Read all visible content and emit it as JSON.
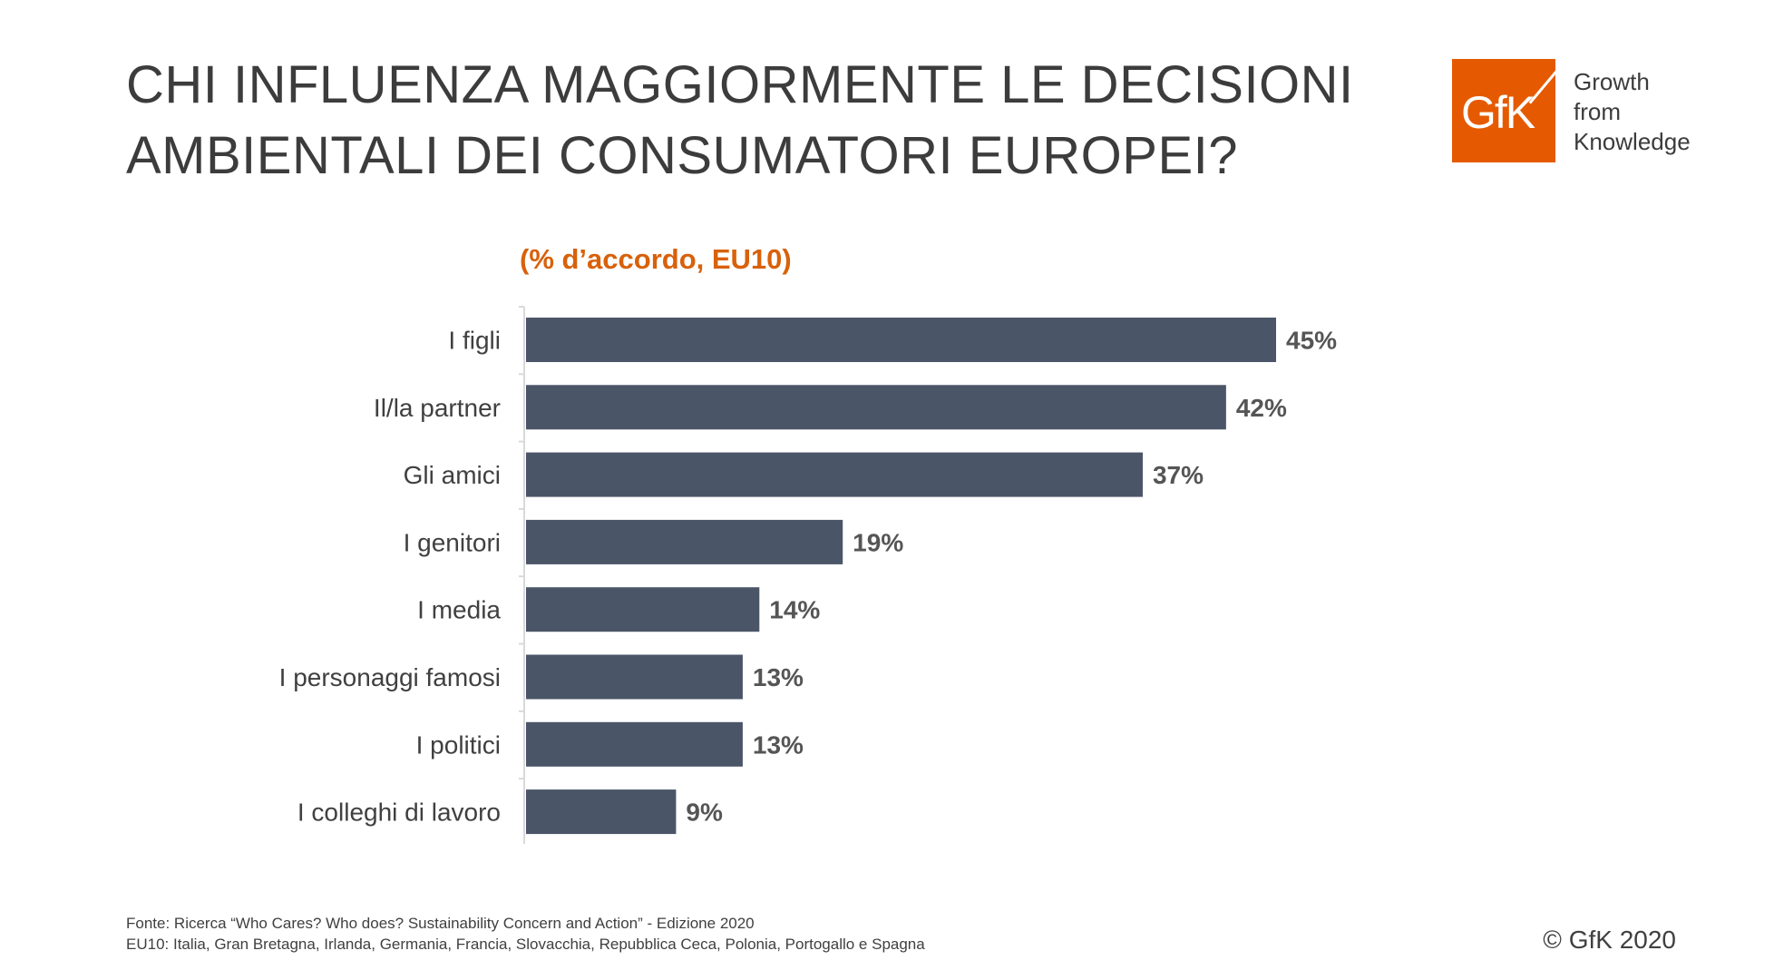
{
  "header": {
    "title_line1": "CHI INFLUENZA MAGGIORMENTE LE DECISIONI",
    "title_line2": "AMBIENTALI DEI CONSUMATORI EUROPEI?"
  },
  "logo": {
    "text": "GfK",
    "tagline": [
      "Growth",
      "from",
      "Knowledge"
    ],
    "color": "#e55a00"
  },
  "chart_data": {
    "type": "bar",
    "orientation": "horizontal",
    "subtitle": "(% d’accordo, EU10)",
    "categories": [
      "I figli",
      "Il/la partner",
      "Gli amici",
      "I genitori",
      "I media",
      "I personaggi famosi",
      "I politici",
      "I colleghi di lavoro"
    ],
    "values": [
      45,
      42,
      37,
      19,
      14,
      13,
      13,
      9
    ],
    "value_labels": [
      "45%",
      "42%",
      "37%",
      "19%",
      "14%",
      "13%",
      "13%",
      "9%"
    ],
    "bar_color": "#4b5568",
    "xlim": [
      0,
      45
    ],
    "grid": false
  },
  "footer": {
    "source": "Fonte: Ricerca “Who Cares? Who does? Sustainability Concern and Action” - Edizione 2020",
    "note": "EU10: Italia, Gran Bretagna, Irlanda, Germania, Francia, Slovacchia, Repubblica Ceca, Polonia, Portogallo e Spagna",
    "copyright": "© GfK 2020"
  }
}
